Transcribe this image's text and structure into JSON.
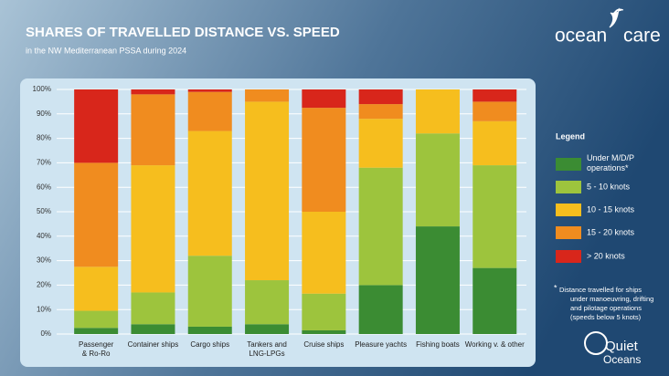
{
  "chart_data": {
    "type": "stacked_bar",
    "title": "SHARES OF TRAVELLED DISTANCE VS. SPEED",
    "subtitle": "in the NW Mediterranean PSSA during 2024",
    "categories": [
      "Passenger\n& Ro-Ro",
      "Container ships",
      "Cargo ships",
      "Tankers and\nLNG-LPGs",
      "Cruise ships",
      "Pleasure yachts",
      "Fishing boats",
      "Working v. & other"
    ],
    "series": [
      {
        "name": "Under M/D/P\noperations*",
        "color": "#3b8c33",
        "values": [
          2.5,
          4,
          3,
          4,
          1.5,
          20,
          44,
          27
        ]
      },
      {
        "name": "5 - 10 knots",
        "color": "#9dc43d",
        "values": [
          7,
          13,
          29,
          18,
          15,
          48,
          38,
          42
        ]
      },
      {
        "name": "10 - 15 knots",
        "color": "#f6be1e",
        "values": [
          18,
          52,
          51,
          73,
          33.5,
          20,
          18,
          18
        ]
      },
      {
        "name": "15 - 20 knots",
        "color": "#f08c1f",
        "values": [
          42.5,
          29,
          16,
          5,
          42.5,
          6,
          0,
          8
        ]
      },
      {
        "name": "> 20 knots",
        "color": "#d8261b",
        "values": [
          30,
          2,
          1,
          0,
          7.5,
          6,
          0,
          5
        ]
      }
    ],
    "ylim": [
      0,
      100
    ],
    "yticks": [
      {
        "value": 0,
        "label": "0%"
      },
      {
        "value": 10,
        "label": "10%"
      },
      {
        "value": 20,
        "label": "20%"
      },
      {
        "value": 30,
        "label": "30%"
      },
      {
        "value": 40,
        "label": "40%"
      },
      {
        "value": 50,
        "label": "50%"
      },
      {
        "value": 60,
        "label": "60%"
      },
      {
        "value": 70,
        "label": "70%"
      },
      {
        "value": 80,
        "label": "80%"
      },
      {
        "value": 90,
        "label": "90%"
      },
      {
        "value": 100,
        "label": "100%"
      }
    ],
    "grid": true,
    "legend_title": "Legend",
    "legend_position": "right",
    "footnote_mark": "*",
    "footnote": "Distance travelled for ships\nunder manoeuvring, drifting\nand pilotage operations\n(speeds below 5 knots)",
    "logos": [
      "ocean",
      "care",
      "Quiet",
      "Oceans"
    ]
  }
}
